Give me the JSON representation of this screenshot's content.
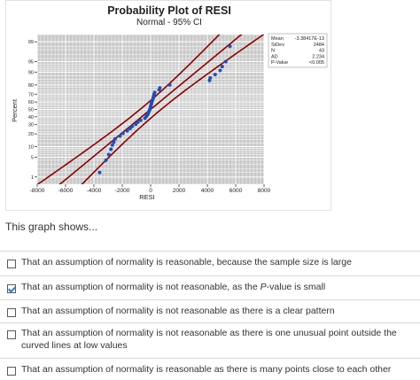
{
  "plot": {
    "title": "Probability Plot of RESI",
    "subtitle": "Normal - 95% CI",
    "xlabel": "RESI",
    "ylabel": "Percent"
  },
  "stats": [
    {
      "name": "Mean",
      "value": "-3.38417E-13"
    },
    {
      "name": "StDev",
      "value": "2484"
    },
    {
      "name": "N",
      "value": "43"
    },
    {
      "name": "AD",
      "value": "2.234"
    },
    {
      "name": "P-Value",
      "value": "<0.005"
    }
  ],
  "chart_data": {
    "type": "scatter",
    "title": "Probability Plot of RESI",
    "subtitle": "Normal - 95% CI",
    "xlabel": "RESI",
    "ylabel": "Percent",
    "xlim": [
      -8000,
      8000
    ],
    "x_ticks": [
      -8000,
      -6000,
      -4000,
      -2000,
      0,
      2000,
      4000,
      6000,
      8000
    ],
    "y_ticks": [
      1,
      5,
      10,
      20,
      30,
      40,
      50,
      60,
      70,
      80,
      90,
      95,
      99
    ],
    "y_scale": "normal-probability",
    "grid": true,
    "series": [
      {
        "points": [
          {
            "x": -3600,
            "y": 1.5
          },
          {
            "x": -3150,
            "y": 4
          },
          {
            "x": -2950,
            "y": 6
          },
          {
            "x": -2800,
            "y": 8.5
          },
          {
            "x": -2700,
            "y": 11
          },
          {
            "x": -2600,
            "y": 13
          },
          {
            "x": -2500,
            "y": 15.5
          },
          {
            "x": -2150,
            "y": 18
          },
          {
            "x": -1950,
            "y": 20.5
          },
          {
            "x": -1650,
            "y": 23
          },
          {
            "x": -1450,
            "y": 25.5
          },
          {
            "x": -1300,
            "y": 28
          },
          {
            "x": -1050,
            "y": 30.5
          },
          {
            "x": -900,
            "y": 33
          },
          {
            "x": -700,
            "y": 35.5
          },
          {
            "x": -400,
            "y": 38
          },
          {
            "x": -300,
            "y": 40.5
          },
          {
            "x": -230,
            "y": 42.5
          },
          {
            "x": -180,
            "y": 44
          },
          {
            "x": -140,
            "y": 46
          },
          {
            "x": -100,
            "y": 48
          },
          {
            "x": -60,
            "y": 50
          },
          {
            "x": -20,
            "y": 52
          },
          {
            "x": 0,
            "y": 54
          },
          {
            "x": 30,
            "y": 56
          },
          {
            "x": 60,
            "y": 58
          },
          {
            "x": 80,
            "y": 60
          },
          {
            "x": 120,
            "y": 62
          },
          {
            "x": 160,
            "y": 64
          },
          {
            "x": 190,
            "y": 66
          },
          {
            "x": 220,
            "y": 68
          },
          {
            "x": 250,
            "y": 70
          },
          {
            "x": 290,
            "y": 72
          },
          {
            "x": 600,
            "y": 75
          },
          {
            "x": 650,
            "y": 77
          },
          {
            "x": 1350,
            "y": 80
          },
          {
            "x": 4150,
            "y": 84
          },
          {
            "x": 4200,
            "y": 86
          },
          {
            "x": 4550,
            "y": 88.5
          },
          {
            "x": 4900,
            "y": 91
          },
          {
            "x": 5050,
            "y": 93
          },
          {
            "x": 5300,
            "y": 95
          },
          {
            "x": 5600,
            "y": 98.5
          }
        ]
      }
    ],
    "fit_line": {
      "mean": 0,
      "stdev": 2484
    }
  },
  "question": "This graph shows...",
  "answers": [
    {
      "text": "That an assumption of normality is reasonable, because the sample size is large",
      "checked": false
    },
    {
      "text_before": "That an assumption of normality is not reasonable, as the ",
      "text_italic": "P",
      "text_after": "-value is small",
      "checked": true
    },
    {
      "text": "That an assumption of normality is not reasonable as there is a clear pattern",
      "checked": false
    },
    {
      "text": "That an assumption of normality is not reasonable as there is one unusual point outside the curved lines at low values",
      "checked": false
    },
    {
      "text": "That an assumption of normality is reasonable as there is many points close to each other",
      "checked": false
    }
  ],
  "colors": {
    "plot_area": "#c8c8c8",
    "grid": "#ffffff",
    "fit_line": "#8b0000",
    "points": "#1f4fb5",
    "checkmark": "#2e7bd6"
  }
}
